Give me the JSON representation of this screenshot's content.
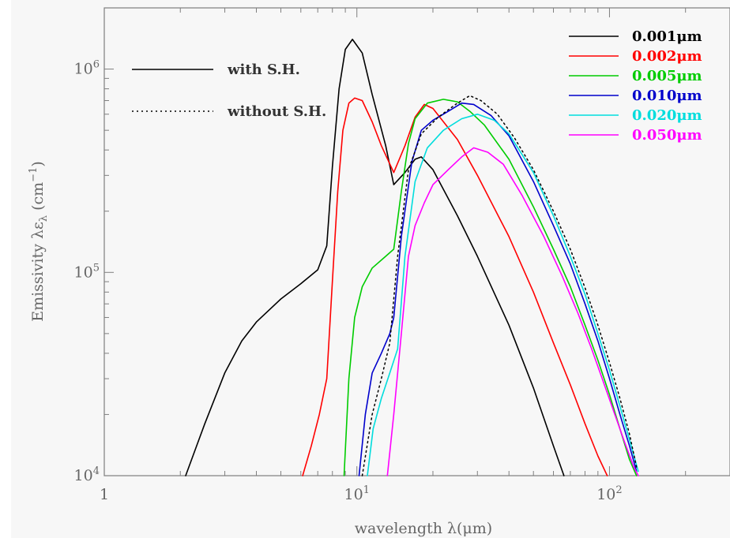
{
  "chart_data": {
    "type": "line",
    "xlabel": "wavelength λ(μm)",
    "ylabel": "Emissivity λε",
    "ylabel_sub": "λ",
    "ylabel_unit_open": "(cm",
    "ylabel_unit_exp": "−1",
    "ylabel_unit_close": ")",
    "xscale": "log",
    "yscale": "log",
    "xlim": [
      1,
      300
    ],
    "ylim": [
      10000,
      2000000
    ],
    "grid": false,
    "x_ticks": [
      {
        "value": 1,
        "base": "1",
        "exp": ""
      },
      {
        "value": 10,
        "base": "10",
        "exp": "1"
      },
      {
        "value": 100,
        "base": "10",
        "exp": "2"
      }
    ],
    "y_ticks": [
      {
        "value": 10000,
        "base": "10",
        "exp": "4"
      },
      {
        "value": 100000,
        "base": "10",
        "exp": "5"
      },
      {
        "value": 1000000,
        "base": "10",
        "exp": "6"
      }
    ],
    "style_legend": [
      {
        "label": "with S.H.",
        "dash": "solid"
      },
      {
        "label": "without S.H.",
        "dash": "dotted"
      }
    ],
    "legend_position": "top-right",
    "series": [
      {
        "name": "0.001μm",
        "color": "#000000",
        "dash": "solid",
        "x": [
          2.1,
          2.5,
          3.0,
          3.5,
          4.0,
          5.0,
          6.0,
          7.0,
          7.6,
          8.0,
          8.5,
          9.0,
          9.6,
          10.5,
          11.5,
          13.0,
          14.0,
          15.5,
          17.0,
          18.0,
          20.0,
          25.0,
          30.0,
          40.0,
          50.0,
          60.0,
          66.0
        ],
        "y": [
          10000,
          18000,
          32000,
          46000,
          57000,
          74000,
          88000,
          103000,
          135000,
          330000,
          800000,
          1250000,
          1400000,
          1200000,
          750000,
          420000,
          270000,
          310000,
          360000,
          370000,
          320000,
          190000,
          120000,
          55000,
          27000,
          14000,
          10000
        ]
      },
      {
        "name": "0.002μm",
        "color": "#ff0000",
        "dash": "solid",
        "x": [
          6.1,
          6.6,
          7.1,
          7.6,
          8.0,
          8.4,
          8.8,
          9.3,
          9.8,
          10.5,
          11.5,
          12.5,
          14.0,
          15.5,
          17.0,
          18.5,
          20.0,
          25.0,
          30.0,
          40.0,
          50.0,
          60.0,
          70.0,
          80.0,
          90.0,
          98.0
        ],
        "y": [
          10000,
          14000,
          20000,
          30000,
          90000,
          250000,
          500000,
          680000,
          720000,
          700000,
          550000,
          420000,
          310000,
          420000,
          580000,
          670000,
          640000,
          450000,
          300000,
          150000,
          80000,
          45000,
          28000,
          18000,
          12500,
          10000
        ]
      },
      {
        "name": "0.005μm",
        "color": "#00cc00",
        "dash": "solid",
        "x": [
          8.9,
          9.3,
          9.8,
          10.5,
          11.5,
          13.0,
          14.0,
          15.0,
          16.0,
          17.0,
          19.0,
          22.0,
          25.0,
          28.0,
          32.0,
          40.0,
          50.0,
          60.0,
          70.0,
          80.0,
          90.0,
          100.0,
          110.0,
          120.0,
          128.0
        ],
        "y": [
          10000,
          30000,
          60000,
          85000,
          105000,
          120000,
          130000,
          250000,
          430000,
          570000,
          680000,
          710000,
          690000,
          620000,
          530000,
          360000,
          210000,
          130000,
          85000,
          55000,
          37000,
          25000,
          17000,
          12000,
          10000
        ]
      },
      {
        "name": "0.010μm",
        "color": "#0000cc",
        "dash": "solid",
        "x": [
          10.2,
          10.8,
          11.5,
          12.5,
          13.5,
          14.0,
          15.0,
          16.5,
          18.0,
          20.0,
          23.0,
          26.0,
          29.0,
          34.0,
          40.0,
          50.0,
          60.0,
          70.0,
          80.0,
          90.0,
          100.0,
          110.0,
          120.0,
          128.0
        ],
        "y": [
          10000,
          20000,
          32000,
          40000,
          50000,
          60000,
          150000,
          350000,
          500000,
          560000,
          620000,
          680000,
          670000,
          590000,
          470000,
          280000,
          170000,
          110000,
          70000,
          46000,
          30000,
          20000,
          14000,
          10500
        ]
      },
      {
        "name": "0.020μm",
        "color": "#00dddd",
        "dash": "solid",
        "x": [
          11.0,
          11.6,
          12.5,
          13.5,
          14.5,
          15.5,
          17.0,
          19.0,
          22.0,
          26.0,
          30.0,
          35.0,
          40.0,
          50.0,
          60.0,
          70.0,
          80.0,
          90.0,
          100.0,
          110.0,
          120.0,
          130.0
        ],
        "y": [
          10000,
          17000,
          24000,
          32000,
          42000,
          120000,
          280000,
          410000,
          500000,
          570000,
          600000,
          560000,
          480000,
          310000,
          190000,
          120000,
          78000,
          50000,
          33000,
          22000,
          15000,
          10500
        ]
      },
      {
        "name": "0.050μm",
        "color": "#ff00ff",
        "dash": "solid",
        "x": [
          13.2,
          14.0,
          15.0,
          16.0,
          17.0,
          18.5,
          20.0,
          23.0,
          26.0,
          29.0,
          33.0,
          38.0,
          45.0,
          55.0,
          65.0,
          75.0,
          85.0,
          95.0,
          105.0,
          115.0,
          125.0,
          130.0
        ],
        "y": [
          10000,
          20000,
          50000,
          120000,
          170000,
          220000,
          270000,
          320000,
          370000,
          410000,
          390000,
          340000,
          240000,
          150000,
          96000,
          63000,
          42000,
          28500,
          20000,
          14500,
          11000,
          10000
        ]
      },
      {
        "name": "",
        "color": "#000000",
        "dash": "dotted",
        "x": [
          10.5,
          11.5,
          12.5,
          13.5,
          14.5,
          16.0,
          18.0,
          21.0,
          25.0,
          28.0,
          31.0,
          36.0,
          42.0,
          50.0,
          60.0,
          70.0,
          80.0,
          90.0,
          100.0,
          110.0,
          120.0,
          128.0
        ],
        "y": [
          10000,
          20000,
          30000,
          45000,
          120000,
          320000,
          480000,
          580000,
          680000,
          740000,
          700000,
          600000,
          460000,
          320000,
          200000,
          130000,
          84000,
          55000,
          36000,
          24000,
          16000,
          11000
        ]
      }
    ]
  }
}
